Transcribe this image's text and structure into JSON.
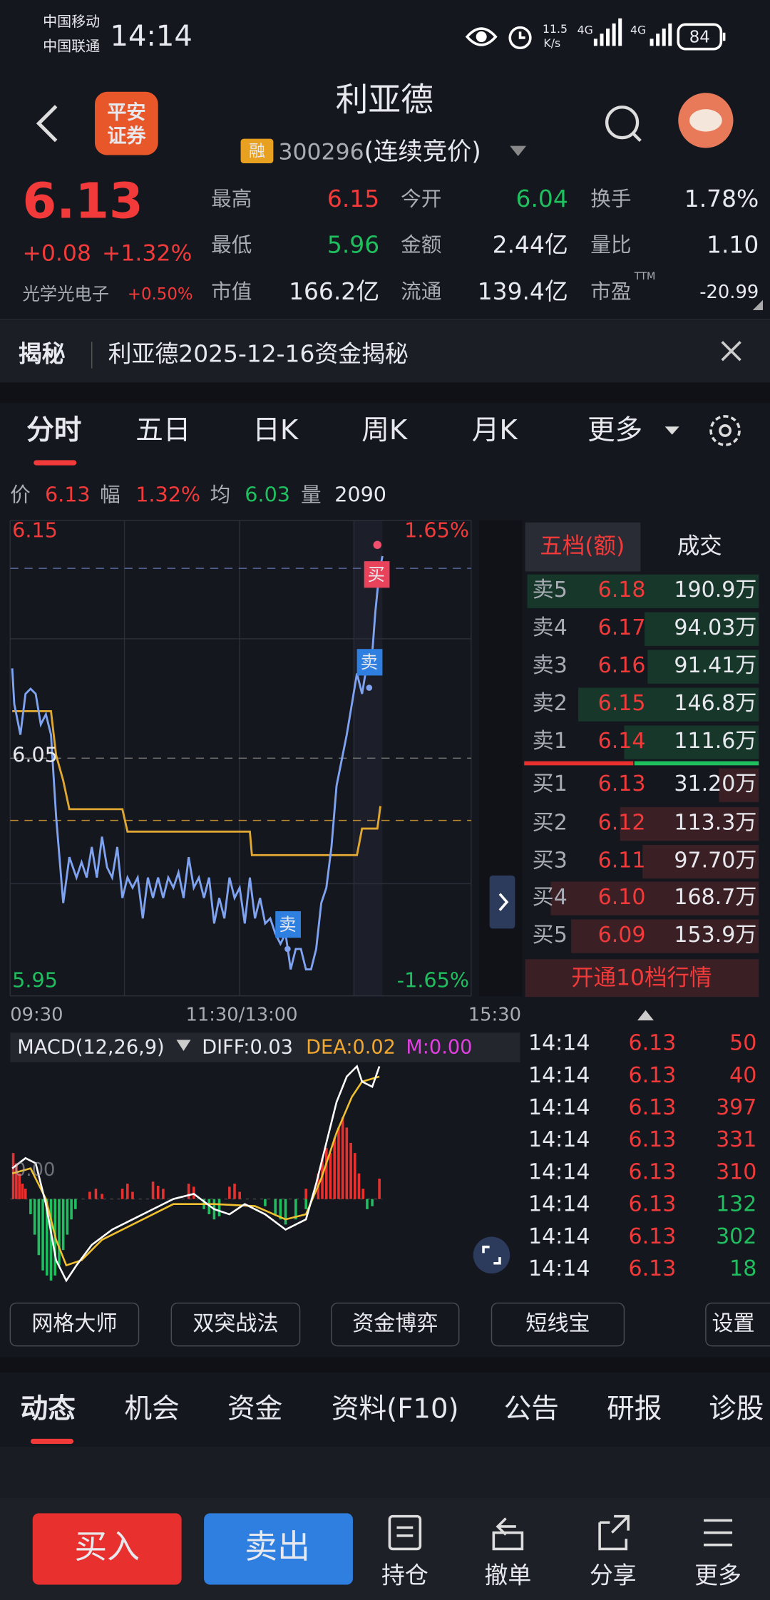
{
  "status": {
    "carrier1": "中国移动",
    "carrier2": "中国联通",
    "time": "14:14",
    "speed": "11.5",
    "speed_unit": "K/s",
    "net1": "4G",
    "net2": "4G",
    "battery": "84"
  },
  "header": {
    "title": "利亚德",
    "tag": "融",
    "code": "300296",
    "mode": "(连续竞价)",
    "broker_line1": "平安",
    "broker_line2": "证券"
  },
  "quote": {
    "price": "6.13",
    "change": "+0.08",
    "change_pct": "+1.32%",
    "sector": "光学光电子",
    "sector_pct": "+0.50%",
    "ttm": "TTM",
    "stats": [
      {
        "label": "最高",
        "value": "6.15"
      },
      {
        "label": "今开",
        "value": "6.04"
      },
      {
        "label": "换手",
        "value": "1.78%"
      },
      {
        "label": "最低",
        "value": "5.96"
      },
      {
        "label": "金额",
        "value": "2.44亿"
      },
      {
        "label": "量比",
        "value": "1.10"
      },
      {
        "label": "市值",
        "value": "166.2亿"
      },
      {
        "label": "流通",
        "value": "139.4亿"
      },
      {
        "label": "市盈",
        "value": "-20.99"
      }
    ]
  },
  "banner": {
    "label": "揭秘",
    "text": "利亚德2025-12-16资金揭秘"
  },
  "tabs": [
    "分时",
    "五日",
    "日K",
    "周K",
    "月K",
    "更多"
  ],
  "info": [
    {
      "label": "价",
      "value": "6.13"
    },
    {
      "label": "幅",
      "value": "1.32%"
    },
    {
      "label": "均",
      "value": "6.03"
    },
    {
      "label": "量",
      "value": "2090"
    }
  ],
  "chart": {
    "price_max": "6.15",
    "price_mid": "6.05",
    "price_min": "5.95",
    "pct_max": "1.65%",
    "pct_min": "-1.65%",
    "times": [
      "09:30",
      "11:30/13:00",
      "15:30"
    ],
    "markers": [
      "买",
      "卖",
      "卖"
    ]
  },
  "book": {
    "tabs": [
      "五档(额)",
      "成交"
    ],
    "asks": [
      {
        "label": "卖5",
        "price": "6.18",
        "amount": "190.9万"
      },
      {
        "label": "卖4",
        "price": "6.17",
        "amount": "94.03万"
      },
      {
        "label": "卖3",
        "price": "6.16",
        "amount": "91.41万"
      },
      {
        "label": "卖2",
        "price": "6.15",
        "amount": "146.8万"
      },
      {
        "label": "卖1",
        "price": "6.14",
        "amount": "111.6万"
      }
    ],
    "bids": [
      {
        "label": "买1",
        "price": "6.13",
        "amount": "31.20万"
      },
      {
        "label": "买2",
        "price": "6.12",
        "amount": "113.3万"
      },
      {
        "label": "买3",
        "price": "6.11",
        "amount": "97.70万"
      },
      {
        "label": "买4",
        "price": "6.10",
        "amount": "168.7万"
      },
      {
        "label": "买5",
        "price": "6.09",
        "amount": "153.9万"
      }
    ],
    "button": "开通10档行情"
  },
  "macd": {
    "label": "MACD(12,26,9)",
    "diff": "DIFF:0.03",
    "dea": "DEA:0.02",
    "m": "M:0.00",
    "zero": "0.00"
  },
  "trades": [
    {
      "time": "14:14",
      "price": "6.13",
      "volume": "50"
    },
    {
      "time": "14:14",
      "price": "6.13",
      "volume": "40"
    },
    {
      "time": "14:14",
      "price": "6.13",
      "volume": "397"
    },
    {
      "time": "14:14",
      "price": "6.13",
      "volume": "331"
    },
    {
      "time": "14:14",
      "price": "6.13",
      "volume": "310"
    },
    {
      "time": "14:14",
      "price": "6.13",
      "volume": "132"
    },
    {
      "time": "14:14",
      "price": "6.13",
      "volume": "302"
    },
    {
      "time": "14:14",
      "price": "6.13",
      "volume": "18"
    }
  ],
  "tools": [
    "网格大师",
    "双突战法",
    "资金博弈",
    "短线宝",
    "设置"
  ],
  "bottom_tabs": [
    "动态",
    "机会",
    "资金",
    "资料(F10)",
    "公告",
    "研报",
    "诊股"
  ],
  "footer": {
    "buy": "买入",
    "sell": "卖出",
    "actions": [
      "持仓",
      "撤单",
      "分享",
      "更多"
    ]
  }
}
